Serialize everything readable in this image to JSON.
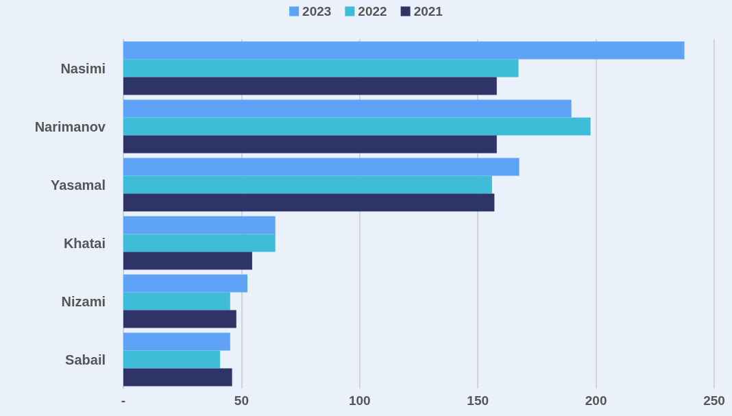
{
  "chart_data": {
    "type": "bar",
    "orientation": "horizontal",
    "categories": [
      "Nasimi",
      "Narimanov",
      "Yasamal",
      "Khatai",
      "Nizami",
      "Sabail"
    ],
    "series": [
      {
        "name": "2023",
        "color": "#5fa3f7",
        "values": [
          237.4,
          189.6,
          167.5,
          64.3,
          52.5,
          45.2
        ]
      },
      {
        "name": "2022",
        "color": "#3ebcd8",
        "values": [
          167.2,
          197.7,
          156,
          64.3,
          45.2,
          40.9
        ]
      },
      {
        "name": "2021",
        "color": "#2e3468",
        "values": [
          158,
          158,
          157,
          54.5,
          47.8,
          46
        ]
      }
    ],
    "xlim": [
      0,
      250
    ],
    "xticks": [
      {
        "value": 0,
        "label": "-"
      },
      50,
      100,
      150,
      200,
      250
    ],
    "grid": "x",
    "legend": "top"
  }
}
